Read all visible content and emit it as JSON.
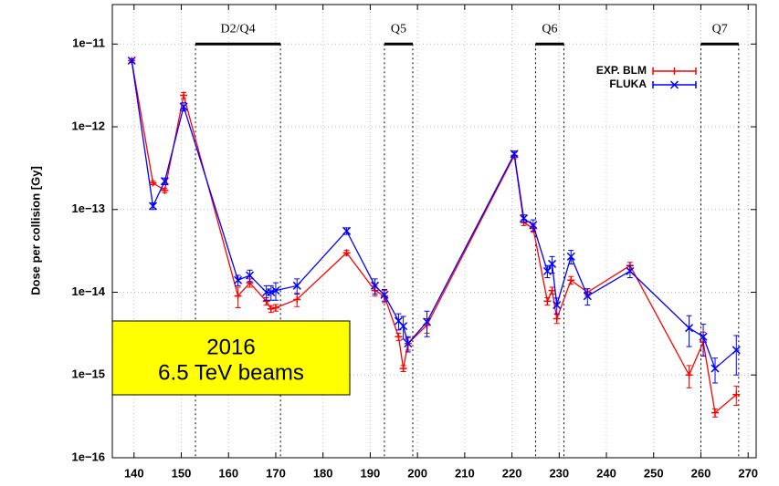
{
  "chart_data": {
    "type": "line",
    "ylabel": "Dose per collision [Gy]",
    "log_y": true,
    "grid": true,
    "legend": "upper right",
    "x": [
      139.5,
      144,
      146.5,
      150.5,
      162,
      164.5,
      168,
      169,
      170,
      174.5,
      185,
      191,
      193,
      196,
      197,
      198,
      202,
      220.5,
      222.5,
      224.5,
      227.5,
      228.5,
      229.5,
      232.5,
      236,
      245,
      257.5,
      260.5,
      263,
      267.5
    ],
    "series": [
      {
        "name": "EXP. BLM",
        "color": "#ff0000",
        "marker": "+",
        "values": [
          6.3e-12,
          2.1e-13,
          1.7e-13,
          2.4e-12,
          9e-15,
          1.3e-14,
          7.8e-15,
          6.3e-15,
          6.5e-15,
          8.2e-15,
          3e-14,
          1.05e-14,
          9e-15,
          2.9e-15,
          1.2e-15,
          2.4e-15,
          4e-15,
          4.5e-13,
          7e-14,
          5.9e-14,
          7.8e-15,
          1.05e-14,
          4.8e-15,
          1.4e-14,
          1e-14,
          2.1e-14,
          1e-15,
          2.5e-15,
          3.5e-16,
          5.8e-16
        ],
        "errors": [
          3e-13,
          1e-14,
          1e-14,
          2e-13,
          2.5e-15,
          1.5e-15,
          8e-16,
          6e-16,
          6e-16,
          1.5e-15,
          2e-15,
          1.5e-15,
          1.5e-15,
          3e-16,
          1e-16,
          4e-16,
          8e-16,
          4e-14,
          6e-15,
          6e-15,
          8e-16,
          1e-15,
          6e-16,
          1.5e-15,
          1e-15,
          2e-15,
          3e-16,
          8e-16,
          4e-17,
          1.5e-16
        ]
      },
      {
        "name": "FLUKA",
        "color": "#0000ff",
        "marker": "x",
        "values": [
          6.3e-12,
          1.1e-13,
          2.2e-13,
          1.75e-12,
          1.4e-14,
          1.6e-14,
          1e-14,
          1e-14,
          1.05e-14,
          1.2e-14,
          5.5e-14,
          1.2e-14,
          9.3e-15,
          4.5e-15,
          3.9e-15,
          2.4e-15,
          4.4e-15,
          4.7e-13,
          7.8e-14,
          6.5e-14,
          1.8e-14,
          2.2e-14,
          7e-15,
          2.7e-14,
          9e-15,
          1.8e-14,
          3.7e-15,
          2.9e-15,
          1.2e-15,
          2e-15
        ],
        "errors": [
          3e-13,
          1e-14,
          2e-14,
          2e-13,
          2e-15,
          2.5e-15,
          2e-15,
          2e-15,
          2.5e-15,
          2.5e-15,
          5e-15,
          2.5e-15,
          1.5e-15,
          1e-15,
          1.2e-15,
          5e-16,
          1.5e-15,
          4e-14,
          8e-15,
          1e-14,
          3e-15,
          5e-15,
          1.5e-15,
          5e-15,
          2e-15,
          3e-15,
          1.5e-15,
          1.2e-15,
          4e-16,
          1e-15
        ]
      }
    ],
    "xlim": [
      135.4,
      271.7
    ],
    "xticks": [
      140,
      150,
      160,
      170,
      180,
      190,
      200,
      210,
      220,
      230,
      240,
      250,
      260,
      270
    ],
    "ylim": [
      1e-16,
      3e-11
    ],
    "yticks": [
      {
        "value": 1e-16,
        "label": "1e−16"
      },
      {
        "value": 1e-15,
        "label": "1e−15"
      },
      {
        "value": 1e-14,
        "label": "1e−14"
      },
      {
        "value": 1e-13,
        "label": "1e−13"
      },
      {
        "value": 1e-12,
        "label": "1e−12"
      },
      {
        "value": 1e-11,
        "label": "1e−11"
      }
    ],
    "regions": [
      {
        "label": "D2/Q4",
        "start": 153,
        "end": 171
      },
      {
        "label": "Q5",
        "start": 193,
        "end": 199
      },
      {
        "label": "Q6",
        "start": 225,
        "end": 231
      },
      {
        "label": "Q7",
        "start": 260,
        "end": 268
      }
    ],
    "annotation": [
      "2016",
      "6.5 TeV beams"
    ]
  }
}
